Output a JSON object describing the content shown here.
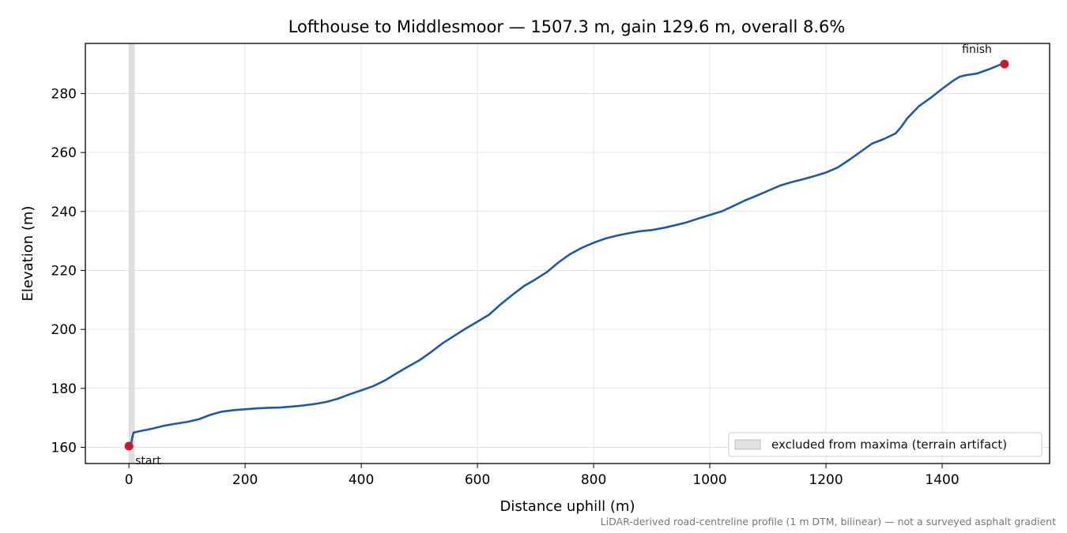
{
  "chart_data": {
    "type": "line",
    "title": "Lofthouse to Middlesmoor — 1507.3 m, gain 129.6 m, overall 8.6%",
    "xlabel": "Distance uphill (m)",
    "ylabel": "Elevation (m)",
    "xlim": [
      -75,
      1585
    ],
    "ylim": [
      154.5,
      297
    ],
    "x_ticks": [
      "0",
      "200",
      "400",
      "600",
      "800",
      "1000",
      "1200",
      "1400"
    ],
    "x_tick_values": [
      0,
      200,
      400,
      600,
      800,
      1000,
      1200,
      1400
    ],
    "y_ticks": [
      "160",
      "180",
      "200",
      "220",
      "240",
      "260",
      "280"
    ],
    "y_tick_values": [
      160,
      180,
      200,
      220,
      240,
      260,
      280
    ],
    "grid": true,
    "line_color": "#1f5aa6",
    "marker_color": "#c41e2a",
    "excluded_region": {
      "x0": 0,
      "x1": 10,
      "label": "excluded from maxima (terrain artifact)",
      "color": "#d9d9d9"
    },
    "legend_placement": "lower-right",
    "start_label": "start",
    "finish_label": "finish",
    "footnote": "LiDAR-derived road-centreline profile (1 m DTM, bilinear) — not a surveyed asphalt gradient",
    "series": [
      {
        "x": [
          0,
          4,
          6,
          8,
          20,
          40,
          60,
          80,
          100,
          120,
          140,
          160,
          180,
          200,
          220,
          240,
          260,
          280,
          300,
          320,
          340,
          360,
          380,
          400,
          420,
          440,
          460,
          480,
          500,
          520,
          540,
          560,
          580,
          600,
          620,
          640,
          660,
          680,
          700,
          720,
          740,
          760,
          780,
          800,
          820,
          840,
          860,
          880,
          900,
          920,
          940,
          960,
          980,
          1000,
          1020,
          1040,
          1060,
          1080,
          1100,
          1120,
          1140,
          1160,
          1180,
          1200,
          1220,
          1240,
          1260,
          1280,
          1300,
          1320,
          1330,
          1340,
          1360,
          1380,
          1400,
          1420,
          1430,
          1440,
          1460,
          1480,
          1500,
          1507.3
        ],
        "y": [
          160.4,
          161.5,
          163.5,
          165,
          165.5,
          166.3,
          167.3,
          168,
          168.6,
          169.5,
          171,
          172.1,
          172.6,
          172.9,
          173.2,
          173.4,
          173.5,
          173.8,
          174.2,
          174.7,
          175.4,
          176.5,
          178,
          179.3,
          180.7,
          182.6,
          185,
          187.3,
          189.5,
          192.3,
          195.3,
          197.8,
          200.3,
          202.6,
          205,
          208.5,
          211.7,
          214.7,
          217,
          219.5,
          222.8,
          225.6,
          227.7,
          229.4,
          230.8,
          231.8,
          232.6,
          233.3,
          233.7,
          234.4,
          235.3,
          236.3,
          237.6,
          238.8,
          240,
          241.8,
          243.7,
          245.3,
          247,
          248.7,
          249.9,
          250.9,
          252,
          253.2,
          254.9,
          257.5,
          260.3,
          263.1,
          264.6,
          266.5,
          268.8,
          271.6,
          275.7,
          278.5,
          281.6,
          284.5,
          285.7,
          286.2,
          286.8,
          288.2,
          289.8,
          290
        ]
      }
    ]
  }
}
